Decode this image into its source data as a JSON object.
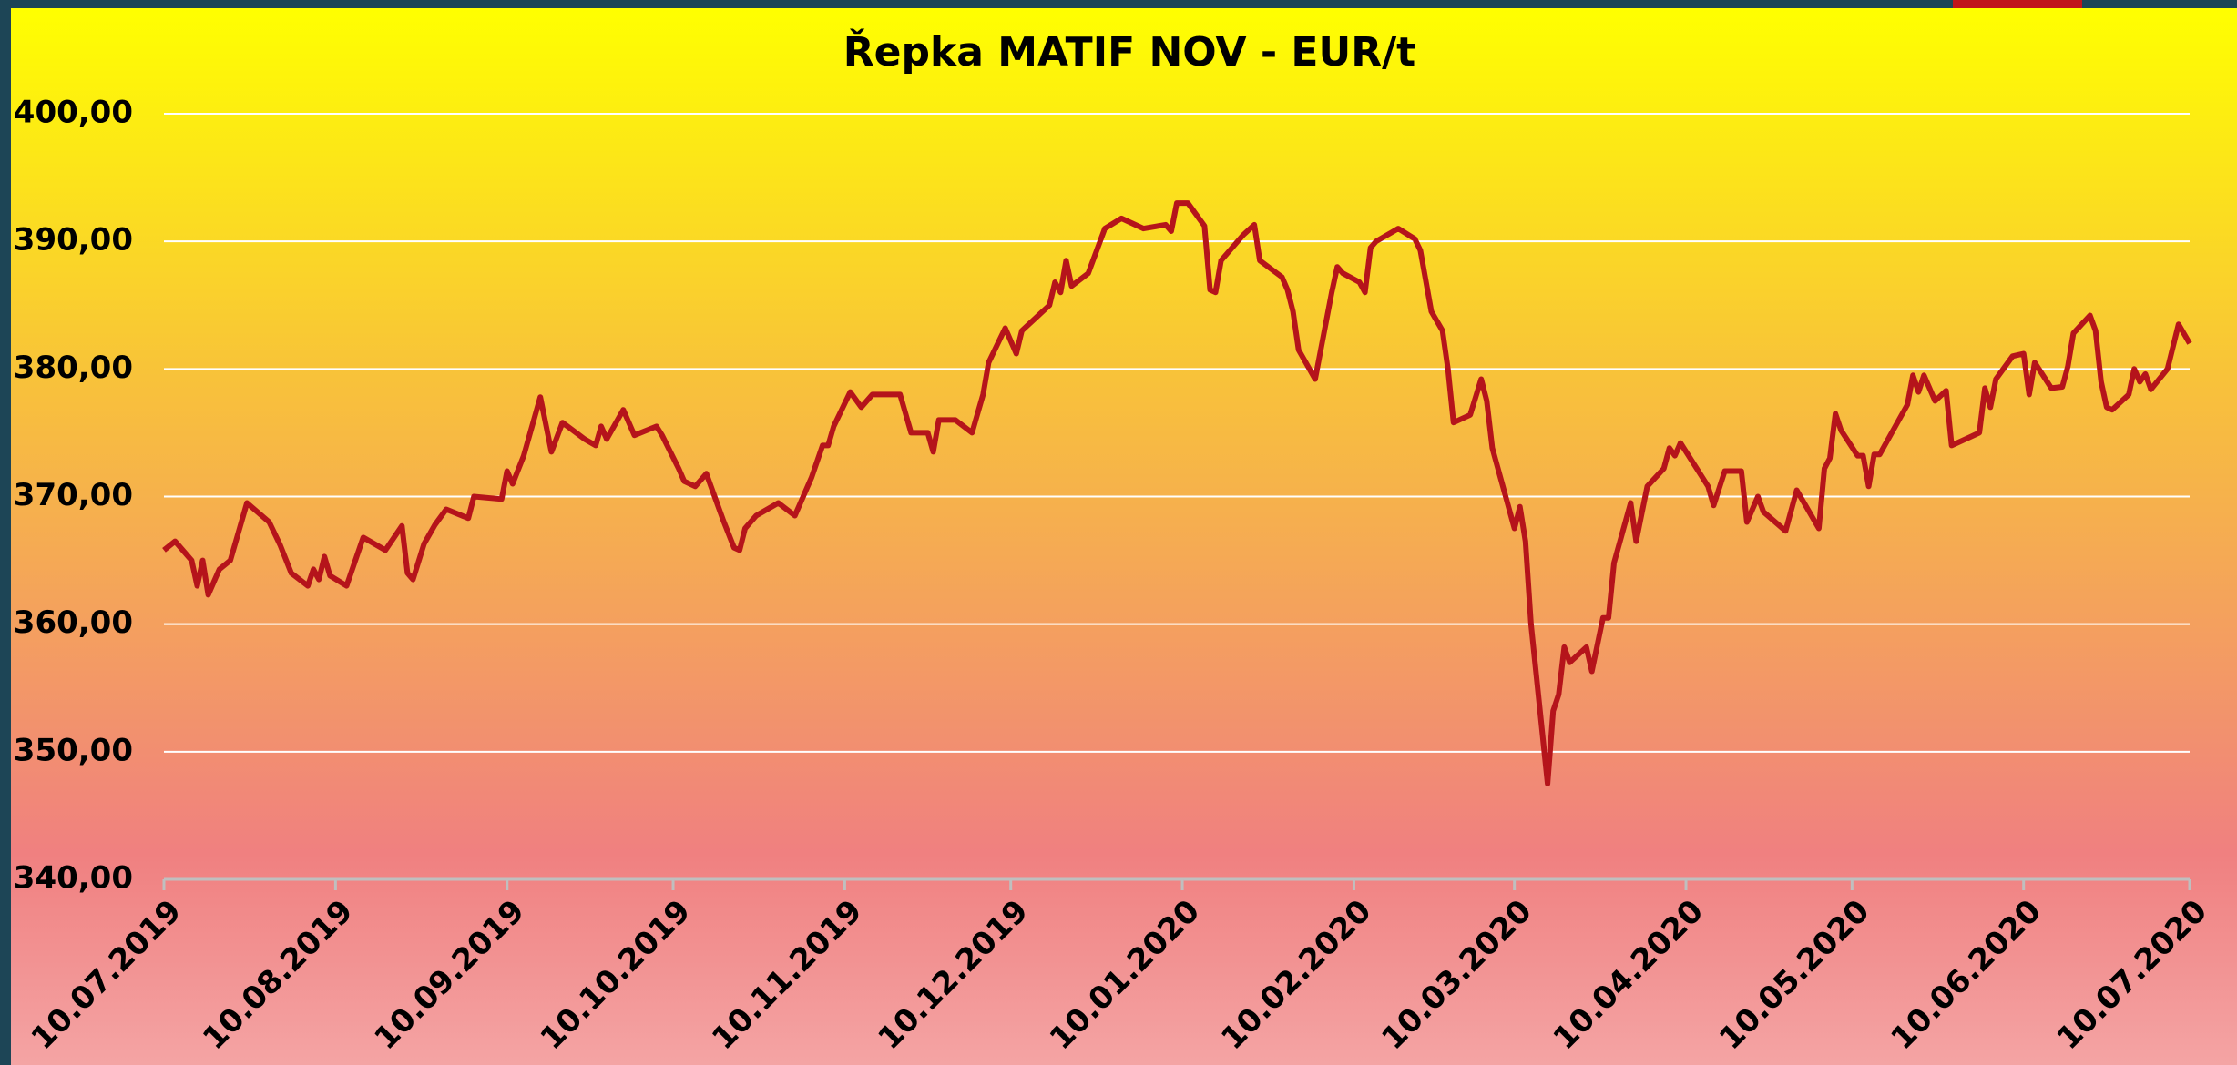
{
  "chart_data": {
    "type": "line",
    "title": "Řepka MATIF NOV - EUR/t",
    "color": "#b5141b",
    "grid": true,
    "x": [
      "2019-07-10",
      "2019-07-12",
      "2019-07-15",
      "2019-07-16",
      "2019-07-17",
      "2019-07-18",
      "2019-07-20",
      "2019-07-22",
      "2019-07-25",
      "2019-07-29",
      "2019-07-31",
      "2019-08-02",
      "2019-08-05",
      "2019-08-06",
      "2019-08-07",
      "2019-08-08",
      "2019-08-09",
      "2019-08-12",
      "2019-08-15",
      "2019-08-19",
      "2019-08-22",
      "2019-08-23",
      "2019-08-24",
      "2019-08-26",
      "2019-08-28",
      "2019-08-30",
      "2019-09-03",
      "2019-09-04",
      "2019-09-09",
      "2019-09-10",
      "2019-09-11",
      "2019-09-13",
      "2019-09-16",
      "2019-09-18",
      "2019-09-20",
      "2019-09-24",
      "2019-09-26",
      "2019-09-27",
      "2019-09-28",
      "2019-10-01",
      "2019-10-03",
      "2019-10-07",
      "2019-10-08",
      "2019-10-11",
      "2019-10-12",
      "2019-10-14",
      "2019-10-16",
      "2019-10-19",
      "2019-10-21",
      "2019-10-22",
      "2019-10-23",
      "2019-10-25",
      "2019-10-29",
      "2019-11-01",
      "2019-11-04",
      "2019-11-06",
      "2019-11-07",
      "2019-11-08",
      "2019-11-11",
      "2019-11-13",
      "2019-11-15",
      "2019-11-20",
      "2019-11-22",
      "2019-11-25",
      "2019-11-26",
      "2019-11-27",
      "2019-11-30",
      "2019-12-03",
      "2019-12-05",
      "2019-12-06",
      "2019-12-09",
      "2019-12-11",
      "2019-12-12",
      "2019-12-17",
      "2019-12-18",
      "2019-12-19",
      "2019-12-20",
      "2019-12-21",
      "2019-12-24",
      "2019-12-27",
      "2019-12-30",
      "2020-01-03",
      "2020-01-07",
      "2020-01-08",
      "2020-01-09",
      "2020-01-11",
      "2020-01-14",
      "2020-01-15",
      "2020-01-16",
      "2020-01-17",
      "2020-01-21",
      "2020-01-23",
      "2020-01-24",
      "2020-01-28",
      "2020-01-29",
      "2020-01-30",
      "2020-01-31",
      "2020-02-03",
      "2020-02-06",
      "2020-02-07",
      "2020-02-08",
      "2020-02-11",
      "2020-02-12",
      "2020-02-13",
      "2020-02-14",
      "2020-02-18",
      "2020-02-21",
      "2020-02-22",
      "2020-02-24",
      "2020-02-26",
      "2020-02-27",
      "2020-02-28",
      "2020-03-02",
      "2020-03-04",
      "2020-03-05",
      "2020-03-06",
      "2020-03-10",
      "2020-03-11",
      "2020-03-12",
      "2020-03-13",
      "2020-03-16",
      "2020-03-17",
      "2020-03-18",
      "2020-03-19",
      "2020-03-20",
      "2020-03-23",
      "2020-03-24",
      "2020-03-26",
      "2020-03-27",
      "2020-03-28",
      "2020-03-31",
      "2020-04-01",
      "2020-04-03",
      "2020-04-06",
      "2020-04-07",
      "2020-04-08",
      "2020-04-09",
      "2020-04-14",
      "2020-04-15",
      "2020-04-17",
      "2020-04-20",
      "2020-04-21",
      "2020-04-23",
      "2020-04-24",
      "2020-04-28",
      "2020-04-30",
      "2020-05-04",
      "2020-05-05",
      "2020-05-06",
      "2020-05-07",
      "2020-05-08",
      "2020-05-11",
      "2020-05-12",
      "2020-05-13",
      "2020-05-14",
      "2020-05-15",
      "2020-05-20",
      "2020-05-21",
      "2020-05-22",
      "2020-05-23",
      "2020-05-25",
      "2020-05-27",
      "2020-05-28",
      "2020-06-02",
      "2020-06-03",
      "2020-06-04",
      "2020-06-05",
      "2020-06-08",
      "2020-06-10",
      "2020-06-11",
      "2020-06-12",
      "2020-06-15",
      "2020-06-17",
      "2020-06-18",
      "2020-06-19",
      "2020-06-22",
      "2020-06-23",
      "2020-06-24",
      "2020-06-25",
      "2020-06-26",
      "2020-06-29",
      "2020-06-30",
      "2020-07-01",
      "2020-07-02",
      "2020-07-03",
      "2020-07-06",
      "2020-07-08",
      "2020-07-10"
    ],
    "values": [
      365.8,
      366.5,
      365,
      363,
      365,
      362.3,
      364.3,
      365,
      369.5,
      368,
      366.2,
      364,
      363,
      364.3,
      363.5,
      365.3,
      363.8,
      363,
      366.8,
      365.8,
      367.7,
      364,
      363.5,
      366.3,
      367.8,
      369,
      368.3,
      370,
      369.8,
      372,
      371,
      373.2,
      377.8,
      373.5,
      375.8,
      374.5,
      374,
      375.5,
      374.5,
      376.8,
      374.8,
      375.5,
      374.8,
      372.2,
      371.2,
      370.8,
      371.8,
      368.2,
      366,
      365.8,
      367.5,
      368.5,
      369.5,
      368.5,
      371.5,
      374,
      374,
      375.5,
      378.2,
      377,
      378,
      378,
      375,
      375,
      373.5,
      376,
      376,
      375,
      378,
      380.5,
      383.2,
      381.2,
      383,
      385,
      386.8,
      386,
      388.5,
      386.5,
      387.5,
      391,
      391.8,
      391,
      391.3,
      390.8,
      393,
      393,
      391.2,
      386.2,
      386,
      388.5,
      390.5,
      391.3,
      388.5,
      387.2,
      386.2,
      384.5,
      381.5,
      379.2,
      386,
      388,
      387.5,
      386.8,
      386,
      389.5,
      390,
      391,
      390.2,
      389.3,
      384.5,
      383,
      380,
      375.8,
      376.4,
      379.2,
      377.5,
      373.8,
      367.5,
      369.2,
      366.5,
      360,
      347.5,
      353.2,
      354.5,
      358.2,
      357,
      358.2,
      356.3,
      360.5,
      360.5,
      364.8,
      369.5,
      366.5,
      370.8,
      372.2,
      373.8,
      373.2,
      374.2,
      370.8,
      369.3,
      372,
      372,
      368,
      370,
      368.8,
      367.3,
      370.5,
      367.5,
      372.2,
      373,
      376.5,
      375.2,
      373.2,
      373.2,
      370.8,
      373.3,
      373.3,
      377.2,
      379.5,
      378.2,
      379.5,
      377.5,
      378.3,
      374,
      375,
      378.5,
      377,
      379.2,
      381,
      381.2,
      378,
      380.5,
      378.5,
      378.6,
      380.2,
      382.8,
      384.2,
      383,
      379,
      377,
      376.8,
      378,
      380,
      379,
      379.6,
      378.4,
      380,
      383.5,
      382
    ],
    "xlim": [
      "2019-07-10",
      "2020-07-10"
    ],
    "xticks": [
      {
        "value": "2019-07-10",
        "label": "10.07.2019"
      },
      {
        "value": "2019-08-10",
        "label": "10.08.2019"
      },
      {
        "value": "2019-09-10",
        "label": "10.09.2019"
      },
      {
        "value": "2019-10-10",
        "label": "10.10.2019"
      },
      {
        "value": "2019-11-10",
        "label": "10.11.2019"
      },
      {
        "value": "2019-12-10",
        "label": "10.12.2019"
      },
      {
        "value": "2020-01-10",
        "label": "10.01.2020"
      },
      {
        "value": "2020-02-10",
        "label": "10.02.2020"
      },
      {
        "value": "2020-03-10",
        "label": "10.03.2020"
      },
      {
        "value": "2020-04-10",
        "label": "10.04.2020"
      },
      {
        "value": "2020-05-10",
        "label": "10.05.2020"
      },
      {
        "value": "2020-06-10",
        "label": "10.06.2020"
      },
      {
        "value": "2020-07-10",
        "label": "10.07.2020"
      }
    ],
    "ylim": [
      340,
      400
    ],
    "yticks": [
      {
        "value": 340,
        "label": "340,00"
      },
      {
        "value": 350,
        "label": "350,00"
      },
      {
        "value": 360,
        "label": "360,00"
      },
      {
        "value": 370,
        "label": "370,00"
      },
      {
        "value": 380,
        "label": "380,00"
      },
      {
        "value": 390,
        "label": "390,00"
      },
      {
        "value": 400,
        "label": "400,00"
      }
    ]
  }
}
